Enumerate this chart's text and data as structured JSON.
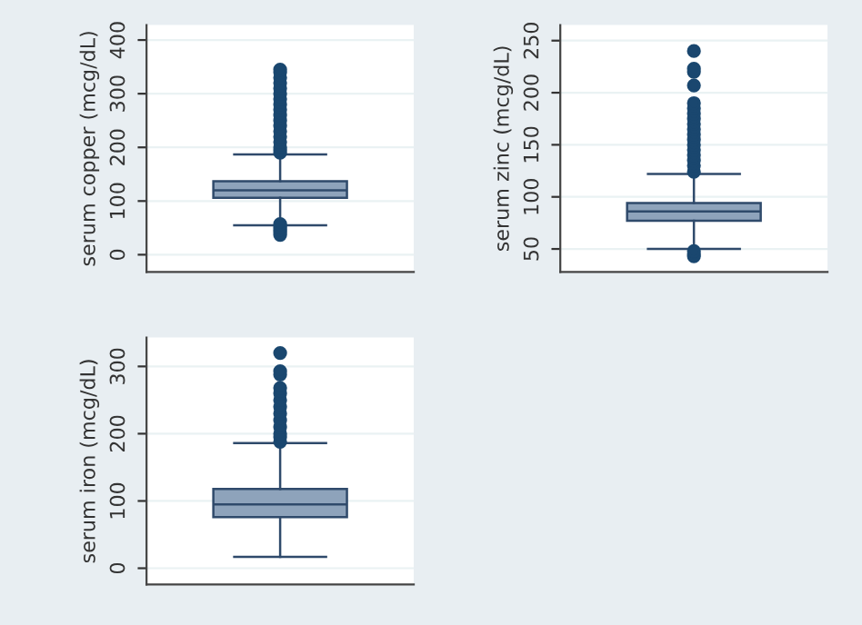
{
  "chart_data": [
    {
      "type": "box",
      "ylabel": "serum copper (mcg/dL)",
      "categories": [
        null
      ],
      "color": "#8ea3bb",
      "ylim": [
        -32,
        428
      ],
      "yticks": [
        0,
        100,
        200,
        300,
        400
      ],
      "grid": "y",
      "tick_labels": "y",
      "boxes": [
        {
          "low": 55,
          "q1": 106,
          "median": 120,
          "q3": 137,
          "high": 187,
          "outliers": [
            37,
            42,
            47,
            52,
            57,
            190,
            195,
            200,
            210,
            220,
            230,
            240,
            250,
            260,
            270,
            280,
            290,
            300,
            310,
            320,
            330,
            340,
            345
          ]
        }
      ]
    },
    {
      "type": "box",
      "ylabel": "serum zinc (mcg/dL)",
      "categories": [
        null
      ],
      "color": "#8ea3bb",
      "ylim": [
        28,
        265
      ],
      "yticks": [
        50,
        100,
        150,
        200,
        250
      ],
      "grid": "y",
      "tick_labels": "y",
      "boxes": [
        {
          "low": 50,
          "q1": 77,
          "median": 86,
          "q3": 94,
          "high": 122,
          "outliers": [
            43,
            45,
            48,
            124,
            130,
            135,
            140,
            145,
            150,
            155,
            160,
            165,
            170,
            175,
            180,
            185,
            190,
            207,
            220,
            223,
            240
          ]
        }
      ]
    },
    {
      "type": "box",
      "ylabel": "serum iron (mcg/dL)",
      "categories": [
        null
      ],
      "color": "#8ea3bb",
      "ylim": [
        -24,
        343
      ],
      "yticks": [
        0,
        100,
        200,
        300
      ],
      "grid": "y",
      "tick_labels": "y",
      "boxes": [
        {
          "low": 17,
          "q1": 76,
          "median": 95,
          "q3": 118,
          "high": 186,
          "outliers": [
            188,
            195,
            200,
            210,
            220,
            230,
            240,
            250,
            260,
            268,
            288,
            293,
            320
          ]
        }
      ]
    }
  ]
}
